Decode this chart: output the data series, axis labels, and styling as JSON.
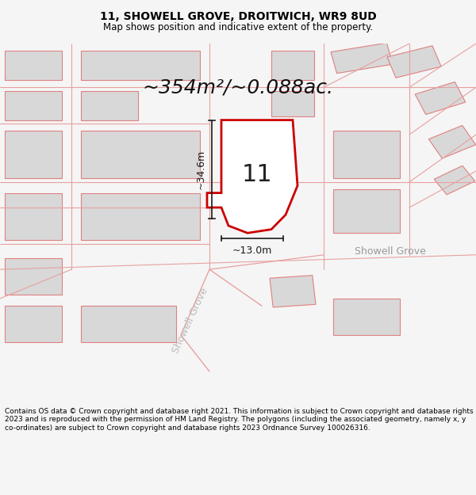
{
  "title_line1": "11, SHOWELL GROVE, DROITWICH, WR9 8UD",
  "title_line2": "Map shows position and indicative extent of the property.",
  "area_label": "~354m²/~0.088ac.",
  "plot_number": "11",
  "dim_height": "~34.6m",
  "dim_width": "~13.0m",
  "street_label_h": "Showell Grove",
  "street_label_v": "Showell Grove",
  "footer": "Contains OS data © Crown copyright and database right 2021. This information is subject to Crown copyright and database rights 2023 and is reproduced with the permission of HM Land Registry. The polygons (including the associated geometry, namely x, y co-ordinates) are subject to Crown copyright and database rights 2023 Ordnance Survey 100026316.",
  "bg_color": "#f5f5f5",
  "map_bg": "#ffffff",
  "plot_fill": "#ffffff",
  "plot_stroke": "#cc0000",
  "dim_color": "#1a1a1a",
  "road_color": "#e8a0a0",
  "building_fill": "#d8d8d8",
  "building_stroke": "#e08080",
  "title_fontsize": 10,
  "subtitle_fontsize": 8.5,
  "area_fontsize": 18,
  "plot_label_fontsize": 22,
  "dim_fontsize": 9,
  "street_fontsize": 9,
  "footer_fontsize": 6.5
}
